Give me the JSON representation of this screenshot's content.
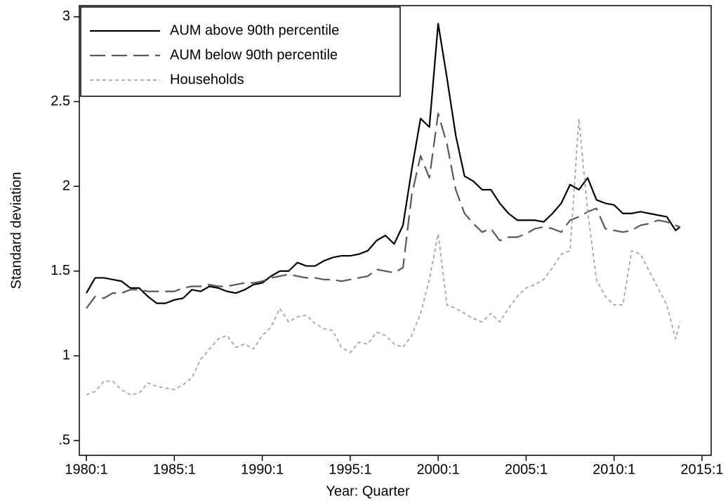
{
  "chart_data": {
    "type": "line",
    "x_label": "Year: Quarter",
    "y_label": "Standard deviation",
    "x": [
      1980,
      1980.5,
      1981,
      1981.5,
      1982,
      1982.5,
      1983,
      1983.5,
      1984,
      1984.5,
      1985,
      1985.5,
      1986,
      1986.5,
      1987,
      1987.5,
      1988,
      1988.5,
      1989,
      1989.5,
      1990,
      1990.5,
      1991,
      1991.5,
      1992,
      1992.5,
      1993,
      1993.5,
      1994,
      1994.5,
      1995,
      1995.5,
      1996,
      1996.5,
      1997,
      1997.5,
      1998,
      1998.5,
      1999,
      1999.5,
      2000,
      2000.5,
      2001,
      2001.5,
      2002,
      2002.5,
      2003,
      2003.5,
      2004,
      2004.5,
      2005,
      2005.5,
      2006,
      2006.5,
      2007,
      2007.5,
      2008,
      2008.5,
      2009,
      2009.5,
      2010,
      2010.5,
      2011,
      2011.5,
      2012,
      2012.5,
      2013,
      2013.5,
      2013.75
    ],
    "series": [
      {
        "name": "AUM above 90th percentile",
        "color": "#000000",
        "dash": "solid",
        "values": [
          1.37,
          1.46,
          1.46,
          1.45,
          1.44,
          1.4,
          1.4,
          1.35,
          1.31,
          1.31,
          1.33,
          1.34,
          1.39,
          1.38,
          1.41,
          1.4,
          1.38,
          1.37,
          1.39,
          1.42,
          1.43,
          1.47,
          1.5,
          1.5,
          1.55,
          1.53,
          1.53,
          1.56,
          1.58,
          1.59,
          1.59,
          1.6,
          1.62,
          1.68,
          1.71,
          1.66,
          1.77,
          2.1,
          2.4,
          2.35,
          2.96,
          2.64,
          2.3,
          2.06,
          2.03,
          1.98,
          1.98,
          1.9,
          1.84,
          1.8,
          1.8,
          1.8,
          1.79,
          1.84,
          1.9,
          2.01,
          1.98,
          2.05,
          1.92,
          1.9,
          1.89,
          1.84,
          1.84,
          1.85,
          1.84,
          1.83,
          1.82,
          1.74,
          1.76
        ]
      },
      {
        "name": "AUM below 90th percentile",
        "color": "#595959",
        "dash": "long",
        "values": [
          1.28,
          1.35,
          1.34,
          1.37,
          1.37,
          1.39,
          1.39,
          1.38,
          1.38,
          1.38,
          1.38,
          1.4,
          1.41,
          1.41,
          1.42,
          1.41,
          1.41,
          1.42,
          1.43,
          1.43,
          1.44,
          1.46,
          1.47,
          1.48,
          1.47,
          1.46,
          1.46,
          1.45,
          1.45,
          1.44,
          1.45,
          1.46,
          1.47,
          1.51,
          1.5,
          1.49,
          1.52,
          1.95,
          2.18,
          2.05,
          2.43,
          2.25,
          1.98,
          1.84,
          1.78,
          1.73,
          1.75,
          1.68,
          1.7,
          1.7,
          1.72,
          1.75,
          1.76,
          1.75,
          1.73,
          1.8,
          1.82,
          1.85,
          1.87,
          1.75,
          1.74,
          1.73,
          1.74,
          1.77,
          1.78,
          1.8,
          1.79,
          1.77,
          1.76
        ]
      },
      {
        "name": "Households",
        "color": "#a6a6a6",
        "dash": "short",
        "values": [
          0.77,
          0.79,
          0.85,
          0.85,
          0.8,
          0.77,
          0.78,
          0.84,
          0.82,
          0.81,
          0.8,
          0.83,
          0.87,
          0.98,
          1.04,
          1.1,
          1.12,
          1.05,
          1.07,
          1.04,
          1.12,
          1.17,
          1.28,
          1.2,
          1.23,
          1.24,
          1.19,
          1.16,
          1.15,
          1.05,
          1.02,
          1.08,
          1.07,
          1.14,
          1.12,
          1.07,
          1.05,
          1.12,
          1.25,
          1.45,
          1.72,
          1.3,
          1.28,
          1.25,
          1.22,
          1.2,
          1.25,
          1.2,
          1.28,
          1.35,
          1.4,
          1.42,
          1.45,
          1.52,
          1.6,
          1.62,
          2.4,
          1.85,
          1.45,
          1.35,
          1.3,
          1.3,
          1.62,
          1.6,
          1.5,
          1.4,
          1.3,
          1.1,
          1.2
        ]
      }
    ],
    "xlim": [
      1979.6,
      2015.52
    ],
    "ylim": [
      0.413,
      3.066
    ],
    "xticks": [
      {
        "value": 1980,
        "label": "1980:1"
      },
      {
        "value": 1985,
        "label": "1985:1"
      },
      {
        "value": 1990,
        "label": "1990:1"
      },
      {
        "value": 1995,
        "label": "1995:1"
      },
      {
        "value": 2000,
        "label": "2000:1"
      },
      {
        "value": 2005,
        "label": "2005:1"
      },
      {
        "value": 2010,
        "label": "2010:1"
      },
      {
        "value": 2015,
        "label": "2015:1"
      }
    ],
    "yticks": [
      {
        "value": 0.5,
        "label": ".5"
      },
      1,
      1.5,
      2,
      2.5,
      3
    ],
    "grid": false,
    "legend_position": "top-left"
  }
}
